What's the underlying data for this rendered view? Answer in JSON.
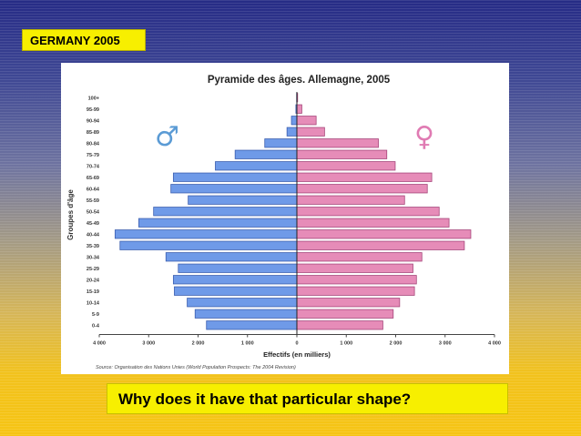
{
  "slide": {
    "tag_label": "GERMANY 2005",
    "question": "Why does it have that particular shape?"
  },
  "symbols": {
    "male": "♂",
    "female": "♀",
    "male_color": "#5b9bd5",
    "female_color": "#e07bb3"
  },
  "colors": {
    "male_bar": "#6f9ae8",
    "male_bar_edge": "#3c5fb0",
    "female_bar": "#e68cb8",
    "female_bar_edge": "#a6457a",
    "tag_bg": "#f7ef00"
  },
  "chart_data": {
    "type": "bar",
    "orientation": "horizontal-pyramid",
    "title": "Pyramide des âges. Allemagne, 2005",
    "xlabel": "Effectifs (en milliers)",
    "ylabel": "Groupes d'âge",
    "source": "Source: Organisation des Nations Unies (World Population Prospects: The 2004 Revision)",
    "categories": [
      "100+",
      "95-99",
      "90-94",
      "85-89",
      "80-84",
      "75-79",
      "70-74",
      "65-69",
      "60-64",
      "55-59",
      "50-54",
      "45-49",
      "40-44",
      "35-39",
      "30-34",
      "25-29",
      "20-24",
      "15-19",
      "10-14",
      "5-9",
      "0-4"
    ],
    "series": [
      {
        "name": "♂",
        "values": [
          5,
          20,
          110,
          200,
          650,
          1250,
          1650,
          2500,
          2550,
          2200,
          2900,
          3200,
          3680,
          3580,
          2650,
          2400,
          2500,
          2480,
          2220,
          2060,
          1830
        ]
      },
      {
        "name": "♀",
        "values": [
          15,
          100,
          390,
          560,
          1650,
          1820,
          1990,
          2730,
          2640,
          2180,
          2880,
          3080,
          3520,
          3390,
          2530,
          2350,
          2420,
          2380,
          2080,
          1950,
          1740
        ]
      }
    ],
    "xlim": [
      -4000,
      4000
    ],
    "x_tick_values": [
      -4000,
      -3000,
      -2000,
      -1000,
      0,
      1000,
      2000,
      3000,
      4000
    ],
    "x_tick_labels": [
      "4 000",
      "3 000",
      "2 000",
      "1 000",
      "0",
      "1 000",
      "2 000",
      "3 000",
      "4 000"
    ],
    "grid": false,
    "legend": "none"
  }
}
